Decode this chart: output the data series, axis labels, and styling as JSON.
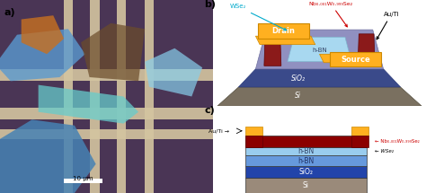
{
  "panel_a_label": "a)",
  "panel_b_label": "b)",
  "panel_c_label": "c)",
  "scale_bar_text": "10 μm",
  "b_labels": {
    "WSe2": "WSe₂",
    "NbWSe2": "Nb₀.₀₀₁W₀.ₙ₉₉Se₂",
    "AuTi": "Au/Ti",
    "Drain": "Drain",
    "Source": "Source",
    "hBN": "h-BN",
    "SiO2": "SiO₂",
    "Si": "Si"
  },
  "c_labels": {
    "AuTi": "Au/Ti →",
    "NbWSe2": "← Nb₀.₀₀₁W₀.ₙ₉₉Se₂",
    "WSe2": "← WSe₂",
    "hBN_top": "h-BN",
    "hBN_bot": "h-BN",
    "SiO2": "SiO₂",
    "Si": "Si"
  },
  "colors": {
    "au_gold": "#FFA500",
    "au_dark": "#CC8800",
    "nb_dark_red": "#8B0000",
    "hbn_light_blue": "#87CEEB",
    "hbn_medium_blue": "#6495ED",
    "sio2_blue": "#2244AA",
    "si_gray": "#808080",
    "device_base": "#5555AA",
    "device_light": "#9999CC",
    "device_dark": "#3A3A7A",
    "bg_white": "#FFFFFF",
    "text_red": "#CC0000",
    "text_cyan": "#00AACC",
    "text_black": "#000000"
  },
  "figsize": [
    4.74,
    2.15
  ],
  "dpi": 100
}
